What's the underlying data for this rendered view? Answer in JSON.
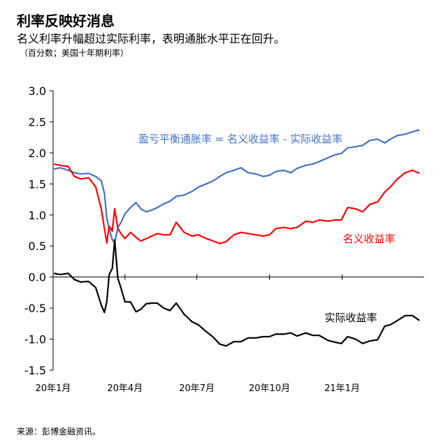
{
  "header": {
    "title": "利率反映好消息",
    "subtitle": "名义利率升幅超过实际利率，表明通胀水平正在回升。",
    "unit": "（百分数；美国十年期利率）"
  },
  "footer": {
    "source": "来源：彭博金融资讯。"
  },
  "colors": {
    "breakeven": "#4472C4",
    "nominal": "#FF0000",
    "real": "#000000",
    "axis": "#000000"
  },
  "chart_data": {
    "type": "line",
    "ylim": [
      -1.5,
      3.0
    ],
    "xlim": [
      "2020-01-01",
      "2021-04-15"
    ],
    "y_ticks": [
      {
        "value": 3.0,
        "label": "3.0"
      },
      {
        "value": 2.5,
        "label": "2.5"
      },
      {
        "value": 2.0,
        "label": "2.0"
      },
      {
        "value": 1.5,
        "label": "1.5"
      },
      {
        "value": 1.0,
        "label": "1.0"
      },
      {
        "value": 0.5,
        "label": "0.5"
      },
      {
        "value": 0.0,
        "label": "0.0"
      },
      {
        "value": -0.5,
        "label": "-0.5"
      },
      {
        "value": -1.0,
        "label": "-1.0"
      },
      {
        "value": -1.5,
        "label": "-1.5"
      }
    ],
    "x_ticks": [
      {
        "date": "2020-01-01",
        "label": "20年1月"
      },
      {
        "date": "2020-04-01",
        "label": "20年4月"
      },
      {
        "date": "2020-07-01",
        "label": "20年7月"
      },
      {
        "date": "2020-10-01",
        "label": "20年10月"
      },
      {
        "date": "2021-01-01",
        "label": "21年1月"
      }
    ],
    "grid": false,
    "series": [
      {
        "key": "breakeven",
        "name": "盈亏平衡通胀率 = 名义收益率 - 实际收益率",
        "points": [
          [
            "2020-01-02",
            1.74
          ],
          [
            "2020-01-10",
            1.76
          ],
          [
            "2020-01-20",
            1.72
          ],
          [
            "2020-01-28",
            1.68
          ],
          [
            "2020-02-05",
            1.66
          ],
          [
            "2020-02-15",
            1.67
          ],
          [
            "2020-02-24",
            1.62
          ],
          [
            "2020-03-02",
            1.55
          ],
          [
            "2020-03-06",
            1.35
          ],
          [
            "2020-03-09",
            0.95
          ],
          [
            "2020-03-12",
            0.78
          ],
          [
            "2020-03-16",
            0.6
          ],
          [
            "2020-03-19",
            0.55
          ],
          [
            "2020-03-23",
            0.8
          ],
          [
            "2020-03-27",
            0.88
          ],
          [
            "2020-04-01",
            1.02
          ],
          [
            "2020-04-08",
            1.12
          ],
          [
            "2020-04-15",
            1.2
          ],
          [
            "2020-04-21",
            1.1
          ],
          [
            "2020-04-28",
            1.05
          ],
          [
            "2020-05-05",
            1.08
          ],
          [
            "2020-05-12",
            1.12
          ],
          [
            "2020-05-20",
            1.18
          ],
          [
            "2020-05-28",
            1.22
          ],
          [
            "2020-06-05",
            1.3
          ],
          [
            "2020-06-15",
            1.32
          ],
          [
            "2020-06-25",
            1.38
          ],
          [
            "2020-07-03",
            1.45
          ],
          [
            "2020-07-13",
            1.5
          ],
          [
            "2020-07-22",
            1.55
          ],
          [
            "2020-07-30",
            1.62
          ],
          [
            "2020-08-07",
            1.68
          ],
          [
            "2020-08-17",
            1.72
          ],
          [
            "2020-08-26",
            1.76
          ],
          [
            "2020-09-04",
            1.68
          ],
          [
            "2020-09-14",
            1.66
          ],
          [
            "2020-09-23",
            1.62
          ],
          [
            "2020-10-01",
            1.64
          ],
          [
            "2020-10-09",
            1.7
          ],
          [
            "2020-10-19",
            1.72
          ],
          [
            "2020-10-28",
            1.68
          ],
          [
            "2020-11-05",
            1.75
          ],
          [
            "2020-11-16",
            1.8
          ],
          [
            "2020-11-25",
            1.82
          ],
          [
            "2020-12-03",
            1.86
          ],
          [
            "2020-12-14",
            1.92
          ],
          [
            "2020-12-23",
            1.97
          ],
          [
            "2020-12-31",
            1.99
          ],
          [
            "2021-01-08",
            2.08
          ],
          [
            "2021-01-18",
            2.1
          ],
          [
            "2021-01-27",
            2.12
          ],
          [
            "2021-02-05",
            2.2
          ],
          [
            "2021-02-15",
            2.22
          ],
          [
            "2021-02-24",
            2.16
          ],
          [
            "2021-03-03",
            2.22
          ],
          [
            "2021-03-12",
            2.28
          ],
          [
            "2021-03-22",
            2.3
          ],
          [
            "2021-03-31",
            2.34
          ],
          [
            "2021-04-09",
            2.37
          ]
        ]
      },
      {
        "key": "nominal",
        "name": "名义收益率",
        "points": [
          [
            "2020-01-02",
            1.82
          ],
          [
            "2020-01-10",
            1.8
          ],
          [
            "2020-01-20",
            1.78
          ],
          [
            "2020-01-28",
            1.62
          ],
          [
            "2020-02-05",
            1.58
          ],
          [
            "2020-02-15",
            1.6
          ],
          [
            "2020-02-24",
            1.45
          ],
          [
            "2020-03-02",
            1.1
          ],
          [
            "2020-03-06",
            0.78
          ],
          [
            "2020-03-09",
            0.55
          ],
          [
            "2020-03-12",
            0.82
          ],
          [
            "2020-03-16",
            0.74
          ],
          [
            "2020-03-19",
            1.1
          ],
          [
            "2020-03-23",
            0.78
          ],
          [
            "2020-03-27",
            0.7
          ],
          [
            "2020-04-01",
            0.62
          ],
          [
            "2020-04-08",
            0.72
          ],
          [
            "2020-04-15",
            0.64
          ],
          [
            "2020-04-21",
            0.58
          ],
          [
            "2020-04-28",
            0.62
          ],
          [
            "2020-05-05",
            0.66
          ],
          [
            "2020-05-12",
            0.7
          ],
          [
            "2020-05-20",
            0.68
          ],
          [
            "2020-05-28",
            0.68
          ],
          [
            "2020-06-05",
            0.88
          ],
          [
            "2020-06-15",
            0.72
          ],
          [
            "2020-06-25",
            0.66
          ],
          [
            "2020-07-03",
            0.68
          ],
          [
            "2020-07-13",
            0.62
          ],
          [
            "2020-07-22",
            0.58
          ],
          [
            "2020-07-30",
            0.54
          ],
          [
            "2020-08-07",
            0.57
          ],
          [
            "2020-08-17",
            0.68
          ],
          [
            "2020-08-26",
            0.72
          ],
          [
            "2020-09-04",
            0.7
          ],
          [
            "2020-09-14",
            0.68
          ],
          [
            "2020-09-23",
            0.66
          ],
          [
            "2020-10-01",
            0.68
          ],
          [
            "2020-10-09",
            0.78
          ],
          [
            "2020-10-19",
            0.8
          ],
          [
            "2020-10-28",
            0.78
          ],
          [
            "2020-11-05",
            0.8
          ],
          [
            "2020-11-16",
            0.9
          ],
          [
            "2020-11-25",
            0.88
          ],
          [
            "2020-12-03",
            0.92
          ],
          [
            "2020-12-14",
            0.9
          ],
          [
            "2020-12-23",
            0.92
          ],
          [
            "2020-12-31",
            0.92
          ],
          [
            "2021-01-08",
            1.12
          ],
          [
            "2021-01-18",
            1.1
          ],
          [
            "2021-01-27",
            1.05
          ],
          [
            "2021-02-05",
            1.17
          ],
          [
            "2021-02-15",
            1.21
          ],
          [
            "2021-02-24",
            1.37
          ],
          [
            "2021-03-03",
            1.45
          ],
          [
            "2021-03-12",
            1.58
          ],
          [
            "2021-03-22",
            1.68
          ],
          [
            "2021-03-31",
            1.72
          ],
          [
            "2021-04-09",
            1.67
          ]
        ]
      },
      {
        "key": "real",
        "name": "实际收益率",
        "points": [
          [
            "2020-01-02",
            0.06
          ],
          [
            "2020-01-10",
            0.04
          ],
          [
            "2020-01-20",
            0.06
          ],
          [
            "2020-01-28",
            -0.04
          ],
          [
            "2020-02-05",
            -0.08
          ],
          [
            "2020-02-15",
            -0.07
          ],
          [
            "2020-02-24",
            -0.17
          ],
          [
            "2020-03-02",
            -0.45
          ],
          [
            "2020-03-06",
            -0.57
          ],
          [
            "2020-03-09",
            -0.4
          ],
          [
            "2020-03-12",
            0.04
          ],
          [
            "2020-03-16",
            0.14
          ],
          [
            "2020-03-19",
            0.6
          ],
          [
            "2020-03-23",
            -0.02
          ],
          [
            "2020-03-27",
            -0.18
          ],
          [
            "2020-04-01",
            -0.4
          ],
          [
            "2020-04-08",
            -0.4
          ],
          [
            "2020-04-15",
            -0.56
          ],
          [
            "2020-04-21",
            -0.52
          ],
          [
            "2020-04-28",
            -0.43
          ],
          [
            "2020-05-05",
            -0.42
          ],
          [
            "2020-05-12",
            -0.42
          ],
          [
            "2020-05-20",
            -0.5
          ],
          [
            "2020-05-28",
            -0.54
          ],
          [
            "2020-06-05",
            -0.42
          ],
          [
            "2020-06-15",
            -0.6
          ],
          [
            "2020-06-25",
            -0.72
          ],
          [
            "2020-07-03",
            -0.77
          ],
          [
            "2020-07-13",
            -0.88
          ],
          [
            "2020-07-22",
            -0.97
          ],
          [
            "2020-07-30",
            -1.08
          ],
          [
            "2020-08-07",
            -1.11
          ],
          [
            "2020-08-17",
            -1.04
          ],
          [
            "2020-08-26",
            -1.04
          ],
          [
            "2020-09-04",
            -0.98
          ],
          [
            "2020-09-14",
            -0.98
          ],
          [
            "2020-09-23",
            -0.96
          ],
          [
            "2020-10-01",
            -0.96
          ],
          [
            "2020-10-09",
            -0.92
          ],
          [
            "2020-10-19",
            -0.92
          ],
          [
            "2020-10-28",
            -0.9
          ],
          [
            "2020-11-05",
            -0.95
          ],
          [
            "2020-11-16",
            -0.9
          ],
          [
            "2020-11-25",
            -0.94
          ],
          [
            "2020-12-03",
            -0.94
          ],
          [
            "2020-12-14",
            -1.02
          ],
          [
            "2020-12-23",
            -1.05
          ],
          [
            "2020-12-31",
            -1.07
          ],
          [
            "2021-01-08",
            -0.96
          ],
          [
            "2021-01-18",
            -1.0
          ],
          [
            "2021-01-27",
            -1.07
          ],
          [
            "2021-02-05",
            -1.03
          ],
          [
            "2021-02-15",
            -1.01
          ],
          [
            "2021-02-24",
            -0.79
          ],
          [
            "2021-03-03",
            -0.77
          ],
          [
            "2021-03-12",
            -0.7
          ],
          [
            "2021-03-22",
            -0.62
          ],
          [
            "2021-03-31",
            -0.62
          ],
          [
            "2021-04-09",
            -0.7
          ]
        ]
      }
    ],
    "annotations": [
      {
        "series": "breakeven",
        "text": "盈亏平衡通胀率 = 名义收益率 - 实际收益率"
      },
      {
        "series": "nominal",
        "text": "名义收益率"
      },
      {
        "series": "real",
        "text": "实际收益率"
      }
    ]
  }
}
